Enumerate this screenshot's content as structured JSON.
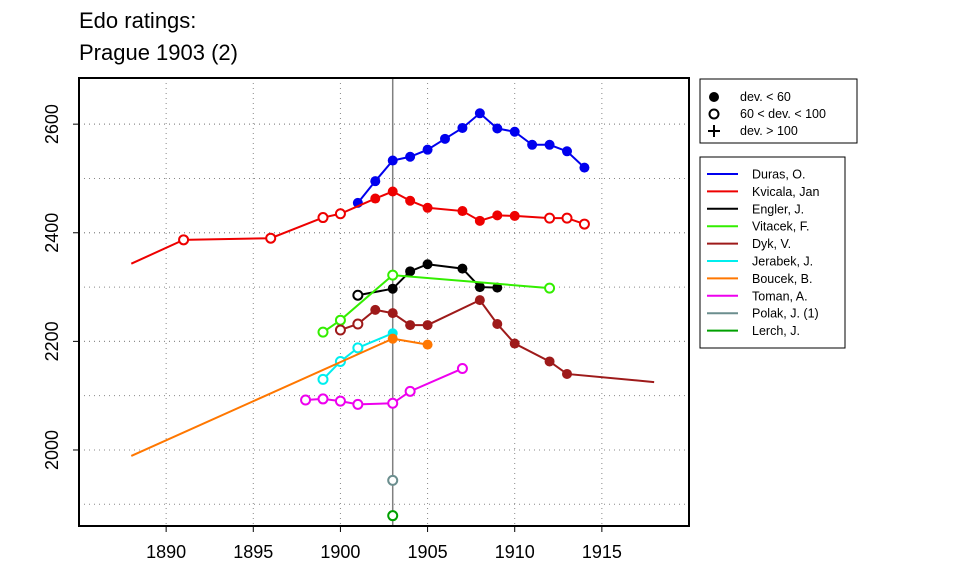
{
  "chart_data": {
    "type": "line",
    "title_lines": [
      "Edo ratings:",
      "Prague 1903 (2)"
    ],
    "xlim": [
      1885,
      1920
    ],
    "ylim": [
      1860,
      2685
    ],
    "x_ticks": [
      1890,
      1895,
      1900,
      1905,
      1910,
      1915
    ],
    "y_ticks": [
      2000,
      2200,
      2400,
      2600
    ],
    "grid": true,
    "vline_x": 1903,
    "symbol_legend": [
      {
        "label": "dev. < 60",
        "symbol": "filled"
      },
      {
        "label": "60 < dev. < 100",
        "symbol": "open"
      },
      {
        "label": "dev. > 100",
        "symbol": "plus"
      }
    ],
    "series": [
      {
        "name": "Duras, O.",
        "color": "#0000EE",
        "points": [
          [
            1901,
            2455,
            "f"
          ],
          [
            1902,
            2495,
            "f"
          ],
          [
            1903,
            2533,
            "f"
          ],
          [
            1904,
            2540,
            "f"
          ],
          [
            1905,
            2553,
            "f"
          ],
          [
            1906,
            2573,
            "f"
          ],
          [
            1907,
            2593,
            "f"
          ],
          [
            1908,
            2620,
            "f"
          ],
          [
            1909,
            2592,
            "f"
          ],
          [
            1910,
            2586,
            "f"
          ],
          [
            1911,
            2562,
            "f"
          ],
          [
            1912,
            2562,
            "f"
          ],
          [
            1913,
            2550,
            "f"
          ],
          [
            1914,
            2520,
            "f"
          ]
        ]
      },
      {
        "name": "Kvicala, Jan",
        "color": "#EE0000",
        "points": [
          [
            1888,
            2343,
            "n"
          ],
          [
            1891,
            2387,
            "o"
          ],
          [
            1896,
            2390,
            "o"
          ],
          [
            1899,
            2428,
            "o"
          ],
          [
            1900,
            2435,
            "o"
          ],
          [
            1902,
            2463,
            "f"
          ],
          [
            1903,
            2476,
            "f"
          ],
          [
            1904,
            2459,
            "f"
          ],
          [
            1905,
            2446,
            "f"
          ],
          [
            1907,
            2440,
            "f"
          ],
          [
            1908,
            2422,
            "f"
          ],
          [
            1909,
            2432,
            "f"
          ],
          [
            1910,
            2431,
            "f"
          ],
          [
            1912,
            2427,
            "o"
          ],
          [
            1913,
            2427,
            "o"
          ],
          [
            1914,
            2416,
            "o"
          ]
        ]
      },
      {
        "name": "Engler, J.",
        "color": "#000000",
        "points": [
          [
            1901,
            2285,
            "o"
          ],
          [
            1903,
            2297,
            "f"
          ],
          [
            1904,
            2329,
            "f"
          ],
          [
            1905,
            2342,
            "f"
          ],
          [
            1907,
            2334,
            "f"
          ],
          [
            1908,
            2300,
            "f"
          ],
          [
            1909,
            2299,
            "f"
          ]
        ]
      },
      {
        "name": "Vitacek, F.",
        "color": "#33EE00",
        "points": [
          [
            1899,
            2217,
            "o"
          ],
          [
            1900,
            2239,
            "o"
          ],
          [
            1903,
            2322,
            "o"
          ],
          [
            1912,
            2298,
            "o"
          ]
        ]
      },
      {
        "name": "Dyk, V.",
        "color": "#9E1A1A",
        "points": [
          [
            1900,
            2221,
            "o"
          ],
          [
            1901,
            2232,
            "o"
          ],
          [
            1902,
            2258,
            "f"
          ],
          [
            1903,
            2252,
            "f"
          ],
          [
            1904,
            2230,
            "f"
          ],
          [
            1905,
            2230,
            "f"
          ],
          [
            1908,
            2276,
            "f"
          ],
          [
            1909,
            2232,
            "f"
          ],
          [
            1910,
            2196,
            "f"
          ],
          [
            1912,
            2163,
            "f"
          ],
          [
            1913,
            2140,
            "f"
          ],
          [
            1918,
            2125,
            "n"
          ]
        ]
      },
      {
        "name": "Jerabek, J.",
        "color": "#00EEEE",
        "points": [
          [
            1899,
            2130,
            "o"
          ],
          [
            1900,
            2163,
            "o"
          ],
          [
            1901,
            2188,
            "o"
          ],
          [
            1903,
            2215,
            "f"
          ]
        ]
      },
      {
        "name": "Boucek, B.",
        "color": "#FF7700",
        "points": [
          [
            1888,
            1989,
            "n"
          ],
          [
            1903,
            2205,
            "f"
          ],
          [
            1905,
            2194,
            "f"
          ]
        ]
      },
      {
        "name": "Toman, A.",
        "color": "#EE00EE",
        "points": [
          [
            1898,
            2092,
            "o"
          ],
          [
            1899,
            2094,
            "o"
          ],
          [
            1900,
            2090,
            "o"
          ],
          [
            1901,
            2084,
            "o"
          ],
          [
            1903,
            2086,
            "o"
          ],
          [
            1904,
            2108,
            "o"
          ],
          [
            1907,
            2150,
            "o"
          ]
        ]
      },
      {
        "name": "Polak, J. (1)",
        "color": "#6B8E8E",
        "points": [
          [
            1903,
            1944,
            "o"
          ]
        ]
      },
      {
        "name": "Lerch, J.",
        "color": "#00A000",
        "points": [
          [
            1903,
            1879,
            "o"
          ]
        ]
      }
    ]
  }
}
